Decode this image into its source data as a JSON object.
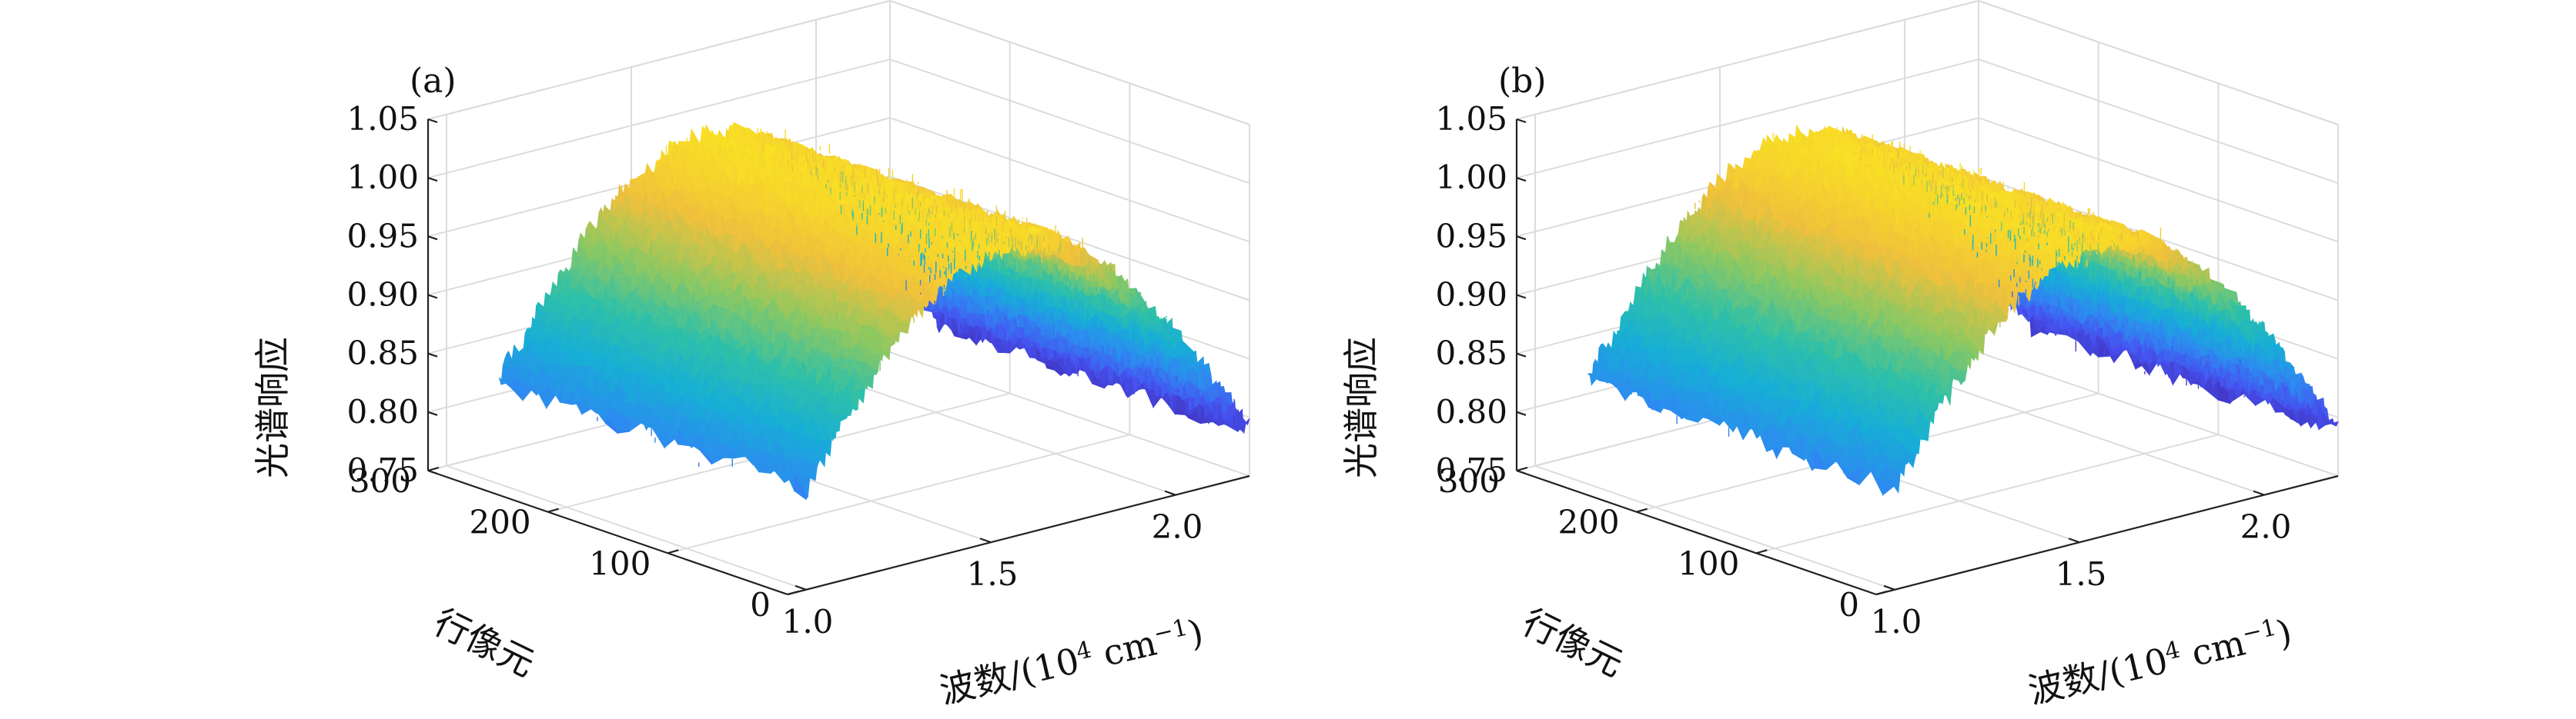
{
  "chart_data": [
    {
      "type": "surface",
      "panel_label": "(a)",
      "zlabel": "光谱响应",
      "ylabel": "行像元",
      "xlabel": "波数/(10",
      "xlabel_sup": "4",
      "xlabel_unit": " cm",
      "xlabel_unit_sup": "−1",
      "xlabel_close": ")",
      "x_ticks": [
        "1.0",
        "1.5",
        "2.0"
      ],
      "x_tick_values": [
        1.0,
        1.5,
        2.0
      ],
      "xlim": [
        0.95,
        2.2
      ],
      "y_ticks": [
        "0",
        "100",
        "200",
        "300"
      ],
      "y_tick_values": [
        0,
        100,
        200,
        300
      ],
      "ylim": [
        0,
        300
      ],
      "z_ticks": [
        "0.75",
        "0.80",
        "0.85",
        "0.90",
        "0.95",
        "1.00",
        "1.05"
      ],
      "z_tick_values": [
        0.75,
        0.8,
        0.85,
        0.9,
        0.95,
        1.0,
        1.05
      ],
      "zlim": [
        0.75,
        1.05
      ],
      "surface": {
        "x_range": [
          1.0,
          2.2
        ],
        "y_range": [
          0,
          256
        ],
        "peak_wavenumber": 1.55,
        "peak_response": 1.0,
        "response_at_1_0": 0.79,
        "response_at_2_2": 0.79,
        "noise_amplitude": 0.012
      },
      "colormap": [
        "#3e26a8",
        "#4652f0",
        "#2d8bf0",
        "#17aed6",
        "#2fc0a8",
        "#8ec861",
        "#f0c03c",
        "#f9e024"
      ]
    },
    {
      "type": "surface",
      "panel_label": "(b)",
      "zlabel": "光谱响应",
      "ylabel": "行像元",
      "xlabel": "波数/(10",
      "xlabel_sup": "4",
      "xlabel_unit": " cm",
      "xlabel_unit_sup": "−1",
      "xlabel_close": ")",
      "x_ticks": [
        "1.0",
        "1.5",
        "2.0"
      ],
      "x_tick_values": [
        1.0,
        1.5,
        2.0
      ],
      "xlim": [
        0.95,
        2.2
      ],
      "y_ticks": [
        "0",
        "100",
        "200",
        "300"
      ],
      "y_tick_values": [
        0,
        100,
        200,
        300
      ],
      "ylim": [
        0,
        300
      ],
      "z_ticks": [
        "0.75",
        "0.80",
        "0.85",
        "0.90",
        "0.95",
        "1.00",
        "1.05"
      ],
      "z_tick_values": [
        0.75,
        0.8,
        0.85,
        0.9,
        0.95,
        1.0,
        1.05
      ],
      "zlim": [
        0.75,
        1.05
      ],
      "surface": {
        "x_range": [
          1.0,
          2.2
        ],
        "y_range": [
          0,
          256
        ],
        "peak_wavenumber": 1.55,
        "peak_response": 1.0,
        "response_at_1_0": 0.79,
        "response_at_2_2": 0.79,
        "noise_amplitude": 0.012
      },
      "colormap": [
        "#3e26a8",
        "#4652f0",
        "#2d8bf0",
        "#17aed6",
        "#2fc0a8",
        "#8ec861",
        "#f0c03c",
        "#f9e024"
      ]
    }
  ]
}
